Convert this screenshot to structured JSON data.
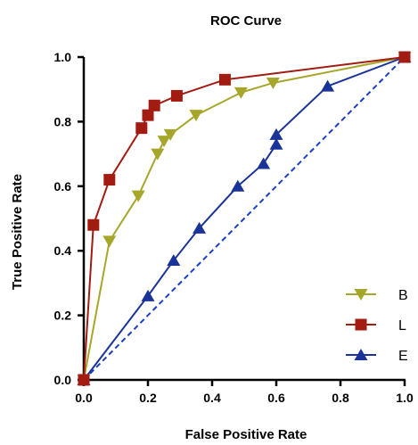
{
  "chart_data": {
    "type": "line",
    "title": "ROC Curve",
    "xlabel": "False Positive Rate",
    "ylabel": "True Positive Rate",
    "xlim": [
      0,
      1
    ],
    "ylim": [
      0,
      1
    ],
    "x_ticks": [
      "0.0",
      "0.2",
      "0.4",
      "0.6",
      "0.8",
      "1.0"
    ],
    "y_ticks": [
      "0.0",
      "0.2",
      "0.4",
      "0.6",
      "0.8",
      "1.0"
    ],
    "grid": false,
    "legend_position": "bottom-right",
    "reference_line": {
      "x": [
        0,
        1
      ],
      "y": [
        0,
        1
      ],
      "style": "dashed",
      "color": "#1a3fc4"
    },
    "series": [
      {
        "name": "B",
        "color": "#a6a62a",
        "marker": "triangle-down",
        "points": [
          [
            0.0,
            0.0
          ],
          [
            0.08,
            0.43
          ],
          [
            0.17,
            0.57
          ],
          [
            0.23,
            0.7
          ],
          [
            0.25,
            0.74
          ],
          [
            0.27,
            0.76
          ],
          [
            0.35,
            0.82
          ],
          [
            0.49,
            0.89
          ],
          [
            0.59,
            0.92
          ],
          [
            1.0,
            1.0
          ]
        ]
      },
      {
        "name": "L",
        "color": "#a31c12",
        "marker": "square",
        "points": [
          [
            0.0,
            0.0
          ],
          [
            0.03,
            0.48
          ],
          [
            0.08,
            0.62
          ],
          [
            0.18,
            0.78
          ],
          [
            0.2,
            0.82
          ],
          [
            0.22,
            0.85
          ],
          [
            0.29,
            0.88
          ],
          [
            0.44,
            0.93
          ],
          [
            1.0,
            1.0
          ]
        ]
      },
      {
        "name": "E",
        "color": "#1a3399",
        "marker": "triangle-up",
        "points": [
          [
            0.0,
            0.0
          ],
          [
            0.2,
            0.26
          ],
          [
            0.28,
            0.37
          ],
          [
            0.36,
            0.47
          ],
          [
            0.48,
            0.6
          ],
          [
            0.56,
            0.67
          ],
          [
            0.6,
            0.73
          ],
          [
            0.6,
            0.76
          ],
          [
            0.76,
            0.91
          ],
          [
            1.0,
            1.0
          ]
        ]
      }
    ]
  }
}
